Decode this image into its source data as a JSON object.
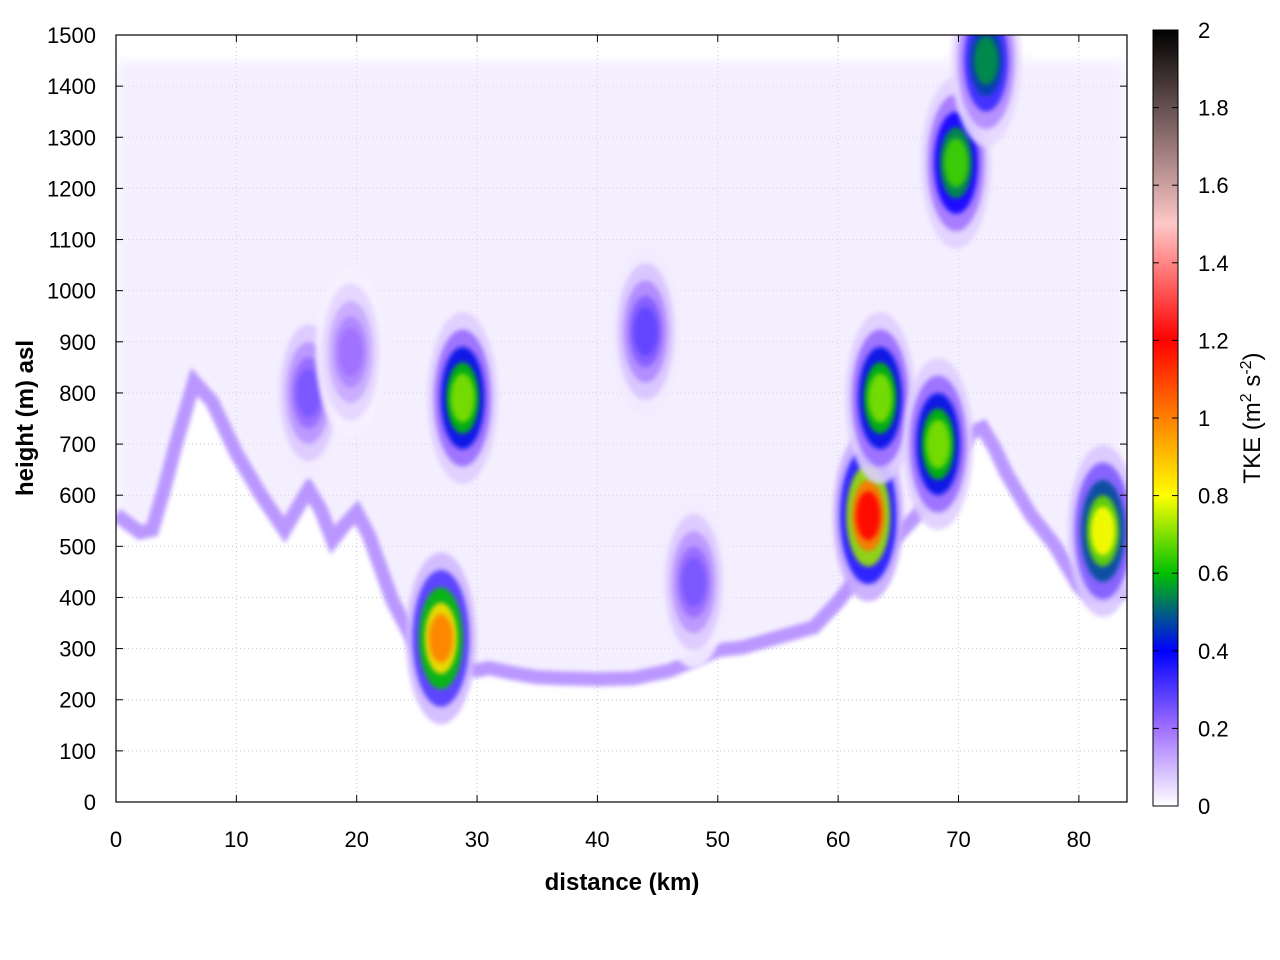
{
  "chart_data": {
    "type": "heatmap",
    "title": "",
    "xlabel": "distance (km)",
    "ylabel": "height (m) asl",
    "xlim": [
      0,
      84
    ],
    "ylim": [
      0,
      1500
    ],
    "x_ticks": [
      "0",
      "10",
      "20",
      "30",
      "40",
      "50",
      "60",
      "70",
      "80"
    ],
    "y_ticks": [
      "0",
      "100",
      "200",
      "300",
      "400",
      "500",
      "600",
      "700",
      "800",
      "900",
      "1000",
      "1100",
      "1200",
      "1300",
      "1400",
      "1500"
    ],
    "grid": true,
    "colorbar": {
      "label_prefix": "TKE (m",
      "label_sup1": "2",
      "label_mid": " s",
      "label_sup2": "-2",
      "label_suffix": ")",
      "range": [
        0,
        2
      ],
      "ticks": [
        "0",
        "0.2",
        "0.4",
        "0.6",
        "0.8",
        "1",
        "1.2",
        "1.4",
        "1.6",
        "1.8",
        "2"
      ],
      "colors": [
        "#ffffff",
        "#a070ff",
        "#0000ff",
        "#00c000",
        "#ffff00",
        "#ff0000",
        "#ffc8c8",
        "#000000"
      ],
      "color_stops": [
        0,
        0.1,
        0.2,
        0.3,
        0.4,
        0.6,
        0.75,
        1.0
      ]
    },
    "terrain": {
      "x": [
        0,
        2,
        3,
        4,
        5,
        6,
        6.5,
        8,
        10,
        12,
        14,
        15,
        16,
        17,
        18,
        19,
        20,
        21,
        23,
        25,
        26,
        26.5,
        27.5,
        29,
        30,
        31,
        32,
        33,
        35,
        37,
        40,
        43,
        46,
        50,
        52,
        55,
        58,
        60,
        61,
        62,
        63,
        65,
        67,
        69,
        71,
        72,
        73,
        74,
        76,
        78,
        80,
        81,
        82,
        84
      ],
      "height": [
        560,
        525,
        530,
        610,
        700,
        780,
        820,
        780,
        680,
        600,
        530,
        570,
        610,
        570,
        510,
        540,
        565,
        520,
        390,
        300,
        270,
        240,
        235,
        260,
        255,
        260,
        255,
        250,
        242,
        240,
        238,
        240,
        255,
        295,
        300,
        320,
        340,
        390,
        420,
        450,
        480,
        520,
        570,
        630,
        720,
        730,
        690,
        640,
        560,
        500,
        420,
        400,
        400,
        410
      ]
    },
    "features": [
      {
        "x": 27,
        "height": 320,
        "value": 1.0
      },
      {
        "x": 28.8,
        "height": 790,
        "value": 0.7
      },
      {
        "x": 16,
        "height": 800,
        "value": 0.25
      },
      {
        "x": 19.5,
        "height": 880,
        "value": 0.2
      },
      {
        "x": 44,
        "height": 920,
        "value": 0.28
      },
      {
        "x": 62.5,
        "height": 560,
        "value": 1.2
      },
      {
        "x": 63.5,
        "height": 790,
        "value": 0.7
      },
      {
        "x": 68.3,
        "height": 700,
        "value": 0.7
      },
      {
        "x": 69.8,
        "height": 1250,
        "value": 0.65
      },
      {
        "x": 72.3,
        "height": 1450,
        "value": 0.55
      },
      {
        "x": 82,
        "height": 530,
        "value": 0.8
      },
      {
        "x": 48,
        "height": 430,
        "value": 0.25
      }
    ]
  }
}
